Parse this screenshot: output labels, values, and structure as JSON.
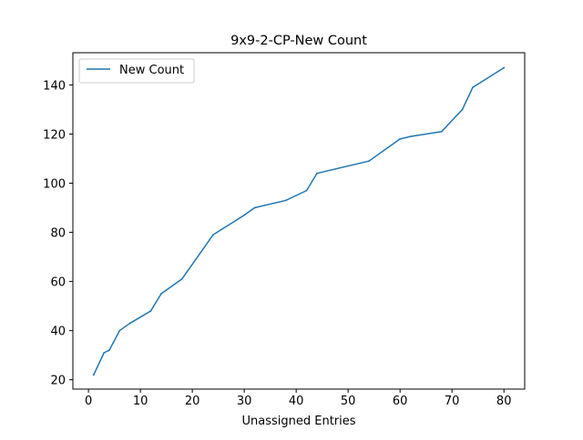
{
  "chart_data": {
    "type": "line",
    "title": "9x9-2-CP-New Count",
    "xlabel": "Unassigned Entries",
    "ylabel": "",
    "xlim": [
      -3,
      84
    ],
    "ylim": [
      16.2,
      153.1
    ],
    "xticks": [
      0,
      10,
      20,
      30,
      40,
      50,
      60,
      70,
      80
    ],
    "yticks": [
      20,
      40,
      60,
      80,
      100,
      120,
      140
    ],
    "grid": false,
    "legend_position": "upper-left",
    "series": [
      {
        "name": "New Count",
        "color": "#1f77b4",
        "x": [
          1,
          3,
          4,
          6,
          8,
          12,
          14,
          18,
          24,
          30,
          32,
          38,
          42,
          44,
          54,
          60,
          62,
          68,
          72,
          74,
          80
        ],
        "y": [
          22,
          31,
          32,
          40,
          43,
          48,
          55,
          61,
          79,
          87,
          90,
          93,
          97,
          104,
          109,
          118,
          119,
          121,
          130,
          139,
          147
        ]
      }
    ]
  }
}
